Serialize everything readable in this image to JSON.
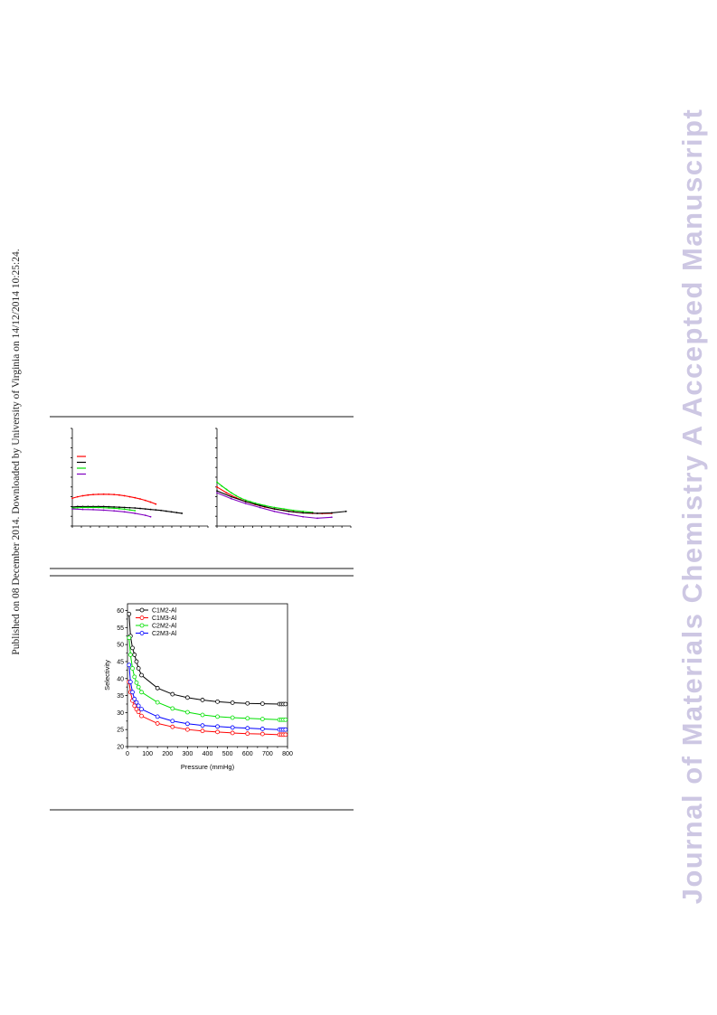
{
  "side_note": "Published on 08 December 2014. Downloaded by University of Virginia on 14/12/2014 10:25:24.",
  "watermark": "Journal of Materials Chemistry A Accepted Manuscript",
  "colors": {
    "black": "#000000",
    "red": "#ff0000",
    "green": "#00e000",
    "blue": "#0000ff",
    "purple": "#8000c0"
  },
  "chart_data": [
    {
      "type": "line",
      "series": [
        {
          "color": "red",
          "x": [
            0,
            1,
            2,
            3,
            4,
            5,
            6,
            7,
            8,
            9,
            10,
            11,
            12,
            13,
            14,
            15,
            16
          ],
          "y": [
            5.7,
            6.0,
            6.2,
            6.35,
            6.45,
            6.5,
            6.52,
            6.5,
            6.45,
            6.35,
            6.2,
            6.0,
            5.8,
            5.55,
            5.25,
            4.9,
            4.5
          ]
        },
        {
          "color": "black",
          "x": [
            0,
            1,
            2,
            3,
            4,
            5,
            6,
            7,
            8,
            9,
            10,
            11,
            12,
            13,
            14,
            15,
            16,
            17,
            18,
            19,
            20,
            21
          ],
          "y": [
            3.9,
            4.0,
            4.0,
            4.0,
            4.0,
            4.0,
            4.0,
            3.95,
            3.9,
            3.85,
            3.8,
            3.75,
            3.7,
            3.6,
            3.5,
            3.4,
            3.3,
            3.2,
            3.05,
            2.9,
            2.75,
            2.6
          ]
        },
        {
          "color": "green",
          "x": [
            0,
            1,
            2,
            3,
            4,
            5,
            6,
            7,
            8,
            9,
            10,
            11,
            12
          ],
          "y": [
            3.7,
            3.75,
            3.8,
            3.8,
            3.8,
            3.8,
            3.75,
            3.7,
            3.65,
            3.55,
            3.45,
            3.3,
            3.15
          ]
        },
        {
          "color": "purple",
          "x": [
            0,
            2,
            4,
            6,
            8,
            10,
            12,
            14,
            15
          ],
          "y": [
            3.5,
            3.4,
            3.35,
            3.25,
            3.1,
            2.9,
            2.6,
            2.2,
            1.9
          ]
        }
      ],
      "legend_colors": [
        "red",
        "black",
        "green",
        "purple"
      ]
    },
    {
      "type": "line",
      "series": [
        {
          "color": "green",
          "x": [
            0,
            1,
            2,
            3,
            4,
            5,
            6,
            7,
            8,
            10,
            12,
            14,
            16,
            18,
            20
          ],
          "y": [
            9.0,
            8.2,
            7.5,
            6.8,
            6.2,
            5.7,
            5.3,
            5.0,
            4.7,
            4.2,
            3.8,
            3.5,
            3.2,
            3.0,
            2.8
          ]
        },
        {
          "color": "red",
          "x": [
            0,
            2,
            4,
            6,
            8,
            10,
            12,
            14,
            16,
            18,
            20,
            22,
            24
          ],
          "y": [
            8.0,
            6.8,
            5.8,
            5.0,
            4.4,
            3.9,
            3.5,
            3.2,
            2.9,
            2.7,
            2.6,
            2.55,
            2.6
          ]
        },
        {
          "color": "black",
          "x": [
            0,
            3,
            6,
            9,
            12,
            15,
            18,
            21,
            24,
            27
          ],
          "y": [
            7.2,
            6.0,
            5.0,
            4.2,
            3.5,
            3.0,
            2.7,
            2.6,
            2.7,
            3.0
          ]
        },
        {
          "color": "purple",
          "x": [
            0,
            3,
            6,
            9,
            12,
            15,
            18,
            21,
            24
          ],
          "y": [
            6.8,
            5.6,
            4.6,
            3.8,
            3.0,
            2.4,
            1.9,
            1.6,
            1.8
          ]
        }
      ]
    },
    {
      "type": "line",
      "xlabel": "Pressure (mmHg)",
      "ylabel": "Selectivity",
      "xlim": [
        0,
        800
      ],
      "ylim": [
        20,
        62
      ],
      "x_ticks": [
        0,
        100,
        200,
        300,
        400,
        500,
        600,
        700,
        800
      ],
      "y_ticks": [
        20,
        25,
        30,
        35,
        40,
        45,
        50,
        55,
        60
      ],
      "legend_position": "top-left",
      "series": [
        {
          "name": "C1M2-Al",
          "color": "black",
          "x": [
            8,
            15,
            25,
            35,
            45,
            55,
            70,
            150,
            225,
            300,
            375,
            450,
            525,
            600,
            675,
            760,
            770,
            780,
            790
          ],
          "y": [
            59,
            52.5,
            49,
            47,
            45,
            43,
            41,
            37.2,
            35.4,
            34.4,
            33.7,
            33.2,
            32.9,
            32.7,
            32.6,
            32.5,
            32.5,
            32.5,
            32.5
          ]
        },
        {
          "name": "C1M3-Al",
          "color": "red",
          "x": [
            8,
            15,
            25,
            35,
            45,
            55,
            70,
            150,
            225,
            300,
            375,
            450,
            525,
            600,
            675,
            760,
            770,
            780,
            790
          ],
          "y": [
            39,
            36,
            33.5,
            32,
            31,
            30.2,
            29,
            26.8,
            25.8,
            25.0,
            24.6,
            24.3,
            24.0,
            23.8,
            23.7,
            23.5,
            23.5,
            23.5,
            23.5
          ]
        },
        {
          "name": "C2M2-Al",
          "color": "green",
          "x": [
            8,
            15,
            25,
            35,
            45,
            55,
            70,
            150,
            225,
            300,
            375,
            450,
            525,
            600,
            675,
            760,
            770,
            780,
            790
          ],
          "y": [
            52,
            47,
            43,
            40.5,
            38.8,
            37.5,
            36,
            33,
            31.2,
            30.1,
            29.3,
            28.8,
            28.5,
            28.3,
            28.1,
            27.9,
            27.9,
            27.9,
            27.9
          ]
        },
        {
          "name": "C2M3-Al",
          "color": "blue",
          "x": [
            8,
            15,
            25,
            35,
            45,
            55,
            70,
            150,
            225,
            300,
            375,
            450,
            525,
            600,
            675,
            760,
            770,
            780,
            790
          ],
          "y": [
            44,
            39,
            36,
            34,
            33,
            32,
            31,
            28.8,
            27.5,
            26.7,
            26.2,
            25.9,
            25.6,
            25.4,
            25.2,
            25.0,
            25.0,
            25.0,
            25.0
          ]
        }
      ]
    }
  ]
}
